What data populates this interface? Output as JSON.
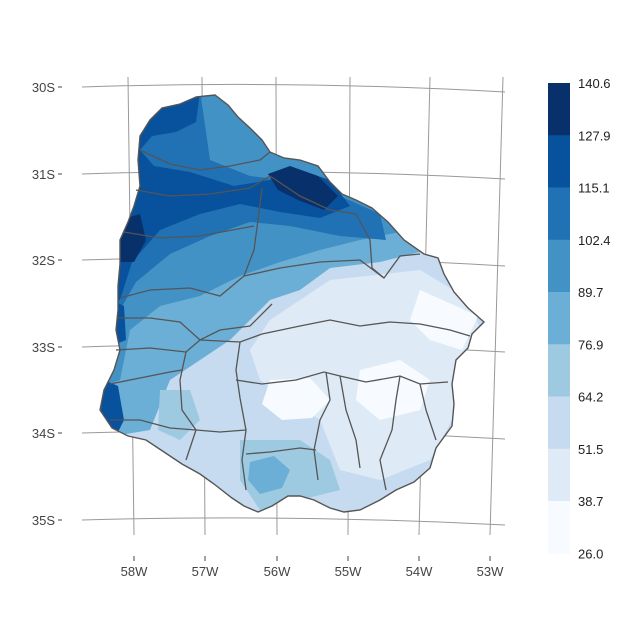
{
  "map": {
    "lat_labels": [
      "30S",
      "31S",
      "32S",
      "33S",
      "34S",
      "35S"
    ],
    "lon_labels": [
      "58W",
      "57W",
      "56W",
      "55W",
      "54W",
      "53W"
    ]
  },
  "legend": {
    "breaks": [
      "140.6",
      "127.9",
      "115.1",
      "102.4",
      "89.7",
      "76.9",
      "64.2",
      "51.5",
      "38.7",
      "26.0"
    ],
    "colors": [
      "#08306b",
      "#08519c",
      "#2171b5",
      "#4292c6",
      "#6baed6",
      "#9ecae1",
      "#c6dbef",
      "#deebf7",
      "#f7fbff"
    ]
  },
  "colors": {
    "graticule": "#999999",
    "border": "#555555",
    "country_fill": "#c9ddf0"
  }
}
